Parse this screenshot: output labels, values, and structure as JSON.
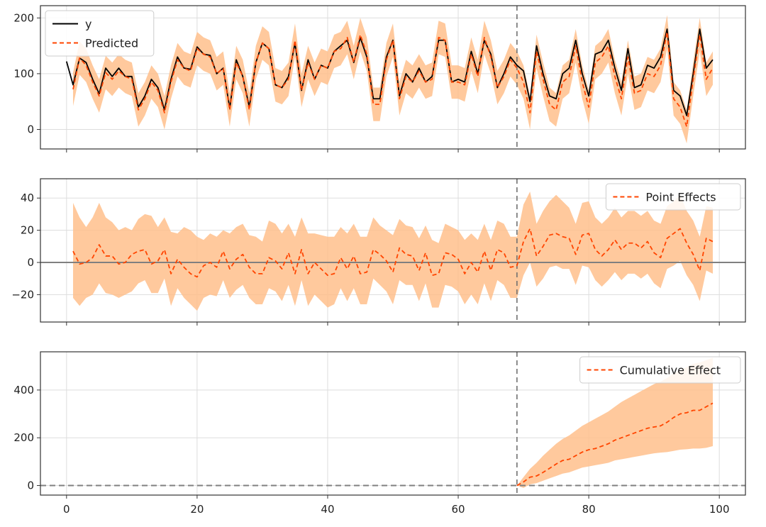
{
  "colors": {
    "observed": "#000000",
    "predicted": "#ff4500",
    "band": "#ffbf8c",
    "grid": "#dddddd",
    "vline": "#707070",
    "zero": "#808080",
    "frame": "#333333"
  },
  "chart_data": [
    {
      "type": "line",
      "yticks": [
        0,
        100,
        200
      ],
      "ylim": [
        -35,
        222
      ],
      "xlim": [
        -4,
        104
      ],
      "xticks": [
        0,
        20,
        40,
        60,
        80,
        100
      ],
      "show_xtick_labels": false,
      "grid": true,
      "intervention_x": 69,
      "legend": {
        "placement": "top-left",
        "entries": [
          {
            "label": "y",
            "style": "solid",
            "color": "#000000"
          },
          {
            "label": "Predicted",
            "style": "dashed",
            "color": "#ff4500"
          }
        ]
      },
      "x": [
        0,
        1,
        2,
        3,
        4,
        5,
        6,
        7,
        8,
        9,
        10,
        11,
        12,
        13,
        14,
        15,
        16,
        17,
        18,
        19,
        20,
        21,
        22,
        23,
        24,
        25,
        26,
        27,
        28,
        29,
        30,
        31,
        32,
        33,
        34,
        35,
        36,
        37,
        38,
        39,
        40,
        41,
        42,
        43,
        44,
        45,
        46,
        47,
        48,
        49,
        50,
        51,
        52,
        53,
        54,
        55,
        56,
        57,
        58,
        59,
        60,
        61,
        62,
        63,
        64,
        65,
        66,
        67,
        68,
        69,
        70,
        71,
        72,
        73,
        74,
        75,
        76,
        77,
        78,
        79,
        80,
        81,
        82,
        83,
        84,
        85,
        86,
        87,
        88,
        89,
        90,
        91,
        92,
        93,
        94,
        95,
        96,
        97,
        98,
        99
      ],
      "series": [
        {
          "name": "y",
          "style": "solid",
          "values": [
            122,
            80,
            128,
            120,
            90,
            64,
            110,
            95,
            110,
            95,
            95,
            40,
            60,
            90,
            75,
            35,
            90,
            130,
            110,
            108,
            148,
            135,
            133,
            100,
            110,
            38,
            125,
            95,
            40,
            120,
            155,
            145,
            80,
            75,
            95,
            155,
            70,
            125,
            90,
            115,
            110,
            140,
            150,
            160,
            120,
            165,
            130,
            55,
            55,
            130,
            160,
            60,
            100,
            85,
            110,
            85,
            95,
            160,
            160,
            85,
            90,
            85,
            140,
            100,
            160,
            135,
            75,
            100,
            130,
            115,
            105,
            50,
            150,
            100,
            60,
            55,
            100,
            110,
            160,
            100,
            60,
            135,
            140,
            160,
            110,
            70,
            145,
            75,
            80,
            115,
            110,
            130,
            180,
            70,
            60,
            25,
            100,
            180,
            110,
            125
          ]
        },
        {
          "name": "Predicted",
          "style": "dashed",
          "values": [
            null,
            72,
            128,
            115,
            85,
            60,
            102,
            90,
            105,
            95,
            90,
            35,
            55,
            85,
            70,
            30,
            85,
            125,
            110,
            105,
            145,
            135,
            130,
            100,
            110,
            35,
            120,
            95,
            35,
            120,
            155,
            145,
            80,
            75,
            90,
            160,
            70,
            120,
            90,
            115,
            110,
            140,
            145,
            165,
            120,
            170,
            135,
            45,
            45,
            125,
            160,
            55,
            95,
            85,
            105,
            85,
            90,
            165,
            160,
            85,
            85,
            80,
            135,
            95,
            165,
            130,
            75,
            95,
            125,
            110,
            85,
            30,
            140,
            90,
            45,
            35,
            85,
            95,
            150,
            85,
            40,
            120,
            130,
            150,
            95,
            55,
            130,
            65,
            70,
            100,
            95,
            115,
            175,
            55,
            40,
            5,
            90,
            170,
            90,
            110
          ]
        }
      ]
    },
    {
      "type": "line",
      "yticks": [
        -20,
        0,
        20,
        40
      ],
      "ylim": [
        -37,
        52
      ],
      "xlim": [
        -4,
        104
      ],
      "xticks": [
        0,
        20,
        40,
        60,
        80,
        100
      ],
      "show_xtick_labels": false,
      "grid": true,
      "intervention_x": 69,
      "zero_line": true,
      "legend": {
        "placement": "top-right",
        "entries": [
          {
            "label": "Point Effects",
            "style": "dashed",
            "color": "#ff4500"
          }
        ]
      },
      "x": [
        1,
        2,
        3,
        4,
        5,
        6,
        7,
        8,
        9,
        10,
        11,
        12,
        13,
        14,
        15,
        16,
        17,
        18,
        19,
        20,
        21,
        22,
        23,
        24,
        25,
        26,
        27,
        28,
        29,
        30,
        31,
        32,
        33,
        34,
        35,
        36,
        37,
        38,
        39,
        40,
        41,
        42,
        43,
        44,
        45,
        46,
        47,
        48,
        49,
        50,
        51,
        52,
        53,
        54,
        55,
        56,
        57,
        58,
        59,
        60,
        61,
        62,
        63,
        64,
        65,
        66,
        67,
        68,
        69,
        70,
        71,
        72,
        73,
        74,
        75,
        76,
        77,
        78,
        79,
        80,
        81,
        82,
        83,
        84,
        85,
        86,
        87,
        88,
        89,
        90,
        91,
        92,
        93,
        94,
        95,
        96,
        97,
        98,
        99
      ],
      "series": [
        {
          "name": "Point Effects",
          "style": "dashed",
          "values": [
            7,
            -1,
            0,
            3,
            11,
            4,
            4,
            -1,
            0,
            5,
            7,
            8,
            -1,
            1,
            8,
            -7,
            2,
            -3,
            -7,
            -9,
            -2,
            0,
            -3,
            7,
            -4,
            2,
            5,
            -3,
            -7,
            -7,
            3,
            1,
            -4,
            6,
            -7,
            8,
            -7,
            0,
            -4,
            -8,
            -7,
            3,
            -4,
            4,
            -7,
            -6,
            8,
            5,
            1,
            -6,
            9,
            5,
            4,
            -5,
            6,
            -8,
            -7,
            6,
            5,
            2,
            -7,
            0,
            -6,
            7,
            -5,
            8,
            6,
            -3,
            -2,
            13,
            21,
            4,
            10,
            17,
            18,
            16,
            15,
            5,
            17,
            18,
            8,
            4,
            8,
            14,
            8,
            12,
            12,
            9,
            13,
            6,
            3,
            15,
            18,
            21,
            12,
            5,
            -5,
            15,
            13
          ]
        },
        {
          "name": "upper",
          "band": true,
          "values": [
            37,
            28,
            22,
            28,
            37,
            28,
            25,
            20,
            22,
            20,
            27,
            30,
            29,
            22,
            28,
            19,
            18,
            22,
            20,
            16,
            14,
            18,
            16,
            20,
            18,
            22,
            24,
            17,
            16,
            13,
            26,
            24,
            18,
            24,
            16,
            28,
            18,
            18,
            17,
            16,
            16,
            22,
            18,
            24,
            16,
            16,
            28,
            23,
            20,
            17,
            27,
            23,
            22,
            15,
            23,
            14,
            12,
            24,
            22,
            20,
            14,
            18,
            14,
            24,
            14,
            26,
            24,
            16,
            16,
            36,
            44,
            24,
            32,
            38,
            42,
            38,
            34,
            24,
            37,
            38,
            28,
            24,
            28,
            34,
            28,
            32,
            32,
            29,
            32,
            26,
            24,
            35,
            38,
            42,
            32,
            26,
            16,
            35,
            34
          ]
        },
        {
          "name": "lower",
          "band": true,
          "values": [
            -22,
            -27,
            -22,
            -20,
            -13,
            -19,
            -20,
            -22,
            -20,
            -18,
            -13,
            -11,
            -19,
            -19,
            -10,
            -27,
            -16,
            -22,
            -26,
            -30,
            -22,
            -20,
            -21,
            -11,
            -22,
            -17,
            -14,
            -22,
            -26,
            -26,
            -16,
            -18,
            -24,
            -14,
            -27,
            -11,
            -27,
            -20,
            -24,
            -28,
            -26,
            -16,
            -24,
            -16,
            -26,
            -26,
            -10,
            -14,
            -18,
            -26,
            -11,
            -14,
            -14,
            -24,
            -13,
            -28,
            -28,
            -14,
            -15,
            -18,
            -26,
            -20,
            -26,
            -13,
            -24,
            -11,
            -14,
            -22,
            -22,
            -8,
            0,
            -15,
            -10,
            -3,
            -2,
            -4,
            -4,
            -14,
            -2,
            -3,
            -11,
            -15,
            -11,
            -6,
            -11,
            -7,
            -7,
            -10,
            -7,
            -13,
            -16,
            -4,
            -2,
            1,
            -8,
            -14,
            -24,
            -5,
            -7
          ]
        }
      ]
    },
    {
      "type": "area",
      "yticks": [
        0,
        200,
        400
      ],
      "ylim": [
        -40,
        560
      ],
      "xlim": [
        -4,
        104
      ],
      "xticks": [
        0,
        20,
        40,
        60,
        80,
        100
      ],
      "xtick_labels": [
        "0",
        "20",
        "40",
        "60",
        "80",
        "100"
      ],
      "show_xtick_labels": true,
      "grid": true,
      "intervention_x": 69,
      "zero_line_dashed": true,
      "legend": {
        "placement": "top-right",
        "entries": [
          {
            "label": "Cumulative Effect",
            "style": "dashed",
            "color": "#ff4500"
          }
        ]
      },
      "x": [
        69,
        70,
        71,
        72,
        73,
        74,
        75,
        76,
        77,
        78,
        79,
        80,
        81,
        82,
        83,
        84,
        85,
        86,
        87,
        88,
        89,
        90,
        91,
        92,
        93,
        94,
        95,
        96,
        97,
        98,
        99
      ],
      "series": [
        {
          "name": "Cumulative Effect",
          "style": "dashed",
          "values": [
            0,
            15,
            35,
            40,
            55,
            72,
            90,
            105,
            110,
            125,
            140,
            150,
            155,
            165,
            175,
            190,
            200,
            210,
            220,
            230,
            240,
            245,
            250,
            265,
            285,
            300,
            305,
            315,
            315,
            330,
            345
          ]
        },
        {
          "name": "upper",
          "band": true,
          "values": [
            0,
            35,
            70,
            95,
            125,
            150,
            175,
            195,
            210,
            230,
            250,
            265,
            280,
            295,
            310,
            330,
            350,
            365,
            380,
            395,
            410,
            425,
            435,
            450,
            470,
            485,
            495,
            510,
            515,
            525,
            535
          ]
        },
        {
          "name": "lower",
          "band": true,
          "values": [
            0,
            -10,
            5,
            10,
            20,
            30,
            40,
            50,
            55,
            65,
            75,
            80,
            85,
            90,
            95,
            105,
            110,
            115,
            120,
            125,
            130,
            135,
            138,
            140,
            145,
            150,
            152,
            155,
            155,
            158,
            165
          ]
        }
      ]
    }
  ]
}
